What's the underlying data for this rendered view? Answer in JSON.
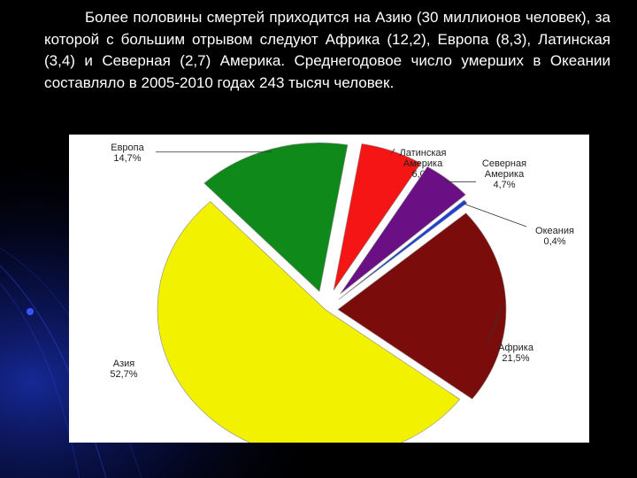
{
  "slide": {
    "text": "Более половины смертей приходится на Азию (30 миллионов человек), за которой с большим отрывом следуют Африка (12,2), Европа (8,3), Латинская (3,4) и Северная (2,7) Америка. Среднегодовое число умерших в Океании составляло в 2005-2010 годах 243 тысяч человек."
  },
  "colors": {
    "background": "#000000",
    "accent_glow": "#1a2fb0"
  },
  "chart_data": {
    "type": "pie",
    "title": "",
    "exploded": true,
    "slices": [
      {
        "name": "Азия",
        "label_lines": [
          "Азия",
          "52,7%"
        ],
        "value": 52.7,
        "color": "#f2f200"
      },
      {
        "name": "Европа",
        "label_lines": [
          "Европа",
          "14,7%"
        ],
        "value": 14.7,
        "color": "#0f8a1a"
      },
      {
        "name": "Латинская Америка",
        "label_lines": [
          "Латинская",
          "Америка",
          "6,0%"
        ],
        "value": 6.0,
        "color": "#f51515"
      },
      {
        "name": "Северная Америка",
        "label_lines": [
          "Северная",
          "Америка",
          "4,7%"
        ],
        "value": 4.7,
        "color": "#6b0f84"
      },
      {
        "name": "Океания",
        "label_lines": [
          "Океания",
          "0,4%"
        ],
        "value": 0.4,
        "color": "#1f3fd8"
      },
      {
        "name": "Африка",
        "label_lines": [
          "Африка",
          "21,5%"
        ],
        "value": 21.5,
        "color": "#7b0c0c"
      }
    ]
  }
}
